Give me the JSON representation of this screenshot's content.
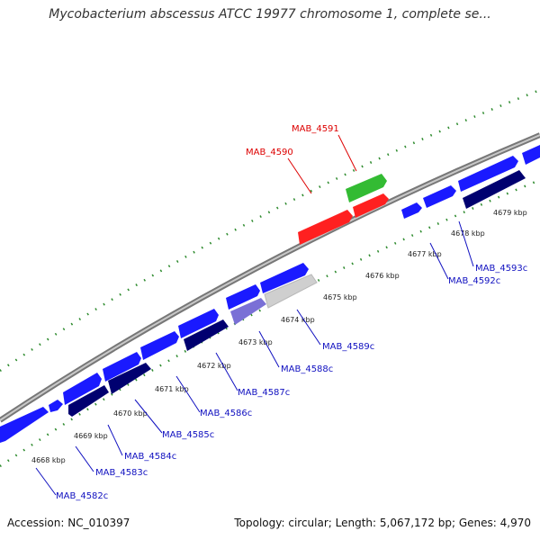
{
  "title": "Mycobacterium abscessus ATCC 19977 chromosome 1, complete se...",
  "footer": {
    "accession": "Accession: NC_010397",
    "summary": "Topology: circular; Length: 5,067,172 bp; Genes: 4,970"
  },
  "colors": {
    "backbone": "#8a8a8a",
    "tick": "#2e8b2e",
    "forward_gene": "#1a1aff",
    "reverse_gene": "#000070",
    "selected_red": "#ff2020",
    "selected_green": "#33bb33",
    "pale_lavender": "#8a7fd8",
    "pale_gray": "#cfcfcf",
    "label_blue": "#1010c0",
    "label_red": "#dd0000"
  },
  "kbp_labels": [
    "4668 kbp",
    "4669 kbp",
    "4670 kbp",
    "4671 kbp",
    "4672 kbp",
    "4673 kbp",
    "4674 kbp",
    "4675 kbp",
    "4676 kbp",
    "4677 kbp",
    "4678 kbp",
    "4679 kbp"
  ],
  "gene_labels": [
    {
      "text": "MAB_4582c",
      "color": "blue"
    },
    {
      "text": "MAB_4583c",
      "color": "blue"
    },
    {
      "text": "MAB_4584c",
      "color": "blue"
    },
    {
      "text": "MAB_4585c",
      "color": "blue"
    },
    {
      "text": "MAB_4586c",
      "color": "blue"
    },
    {
      "text": "MAB_4587c",
      "color": "blue"
    },
    {
      "text": "MAB_4588c",
      "color": "blue"
    },
    {
      "text": "MAB_4589c",
      "color": "blue"
    },
    {
      "text": "MAB_4592c",
      "color": "blue"
    },
    {
      "text": "MAB_4593c",
      "color": "blue"
    },
    {
      "text": "MAB_4590",
      "color": "red"
    },
    {
      "text": "MAB_4591",
      "color": "red"
    }
  ]
}
